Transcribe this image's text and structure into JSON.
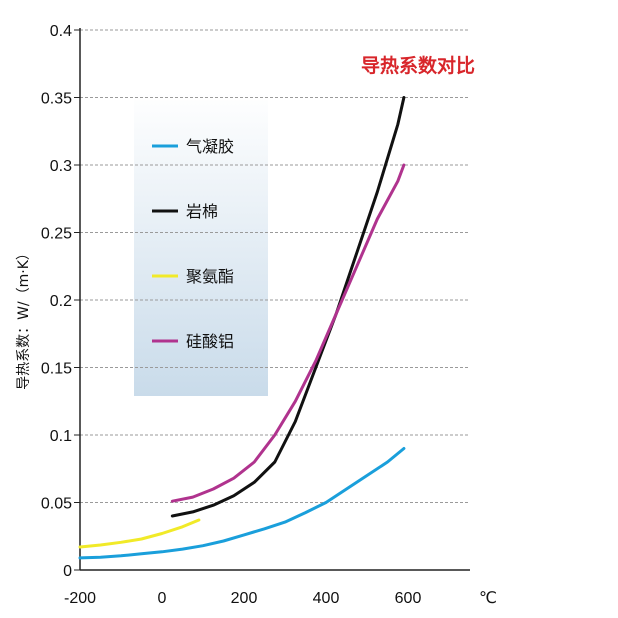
{
  "chart_data": {
    "type": "line",
    "title": "导热系数对比",
    "ylabel": "导热系数：W/（m·K）",
    "xlabel": "",
    "x_unit": "℃",
    "xlim": [
      -200,
      600
    ],
    "ylim": [
      0,
      0.4
    ],
    "x_ticks": [
      "-200",
      "0",
      "200",
      "400",
      "600"
    ],
    "y_ticks": [
      "0",
      "0.05",
      "0.1",
      "0.15",
      "0.2",
      "0.25",
      "0.3",
      "0.35",
      "0.4"
    ],
    "grid": true,
    "legend_position": "top-left",
    "series": [
      {
        "name": "气凝胶",
        "color": "#1a9fdb",
        "x": [
          -200,
          -150,
          -100,
          -50,
          0,
          50,
          100,
          150,
          200,
          250,
          300,
          350,
          400,
          450,
          500,
          550,
          590
        ],
        "y": [
          0.009,
          0.0095,
          0.0105,
          0.012,
          0.0135,
          0.0155,
          0.018,
          0.0215,
          0.026,
          0.0305,
          0.0355,
          0.0425,
          0.05,
          0.06,
          0.07,
          0.08,
          0.09
        ]
      },
      {
        "name": "岩棉",
        "color": "#111111",
        "x": [
          25,
          75,
          125,
          175,
          225,
          275,
          325,
          375,
          425,
          475,
          525,
          575,
          590
        ],
        "y": [
          0.04,
          0.043,
          0.048,
          0.055,
          0.065,
          0.08,
          0.11,
          0.15,
          0.19,
          0.235,
          0.28,
          0.33,
          0.35
        ]
      },
      {
        "name": "聚氨酯",
        "color": "#f1ea28",
        "x": [
          -200,
          -150,
          -100,
          -50,
          0,
          50,
          90
        ],
        "y": [
          0.017,
          0.0185,
          0.0205,
          0.023,
          0.027,
          0.032,
          0.037
        ]
      },
      {
        "name": "硅酸铝",
        "color": "#b0338e",
        "x": [
          25,
          75,
          125,
          175,
          225,
          275,
          325,
          375,
          425,
          475,
          525,
          575,
          590
        ],
        "y": [
          0.051,
          0.054,
          0.06,
          0.068,
          0.08,
          0.1,
          0.125,
          0.155,
          0.19,
          0.225,
          0.26,
          0.288,
          0.3
        ]
      }
    ]
  }
}
